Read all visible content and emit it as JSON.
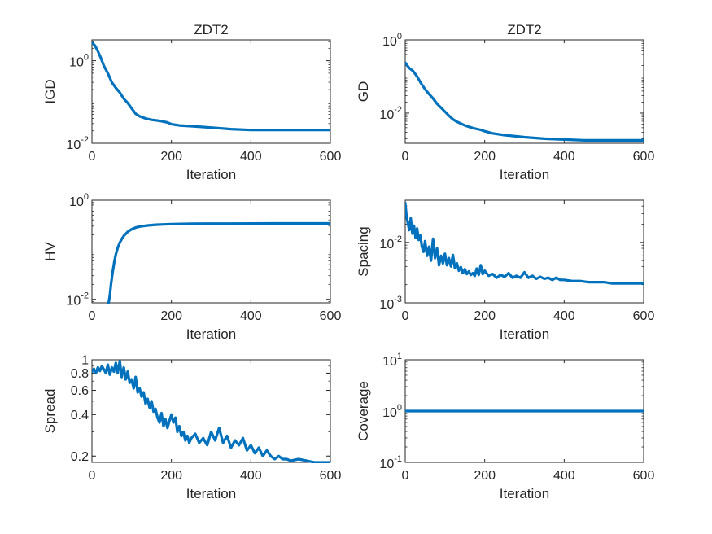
{
  "figure": {
    "background": "#ffffff",
    "line_color": "#0072bd",
    "axis_color": "#262626"
  },
  "chart_data": [
    {
      "type": "line",
      "id": "p1",
      "title": "ZDT2",
      "xlabel": "Iteration",
      "ylabel": "IGD",
      "yscale": "log",
      "xlim": [
        0,
        600
      ],
      "ylim": [
        0.01,
        3.2
      ],
      "x_ticks": [
        {
          "value": 0,
          "label": "0"
        },
        {
          "value": 200,
          "label": "200"
        },
        {
          "value": 400,
          "label": "400"
        },
        {
          "value": 600,
          "label": "600"
        }
      ],
      "y_ticks": [
        {
          "value": 0.01,
          "base": "10",
          "exp": "-2"
        },
        {
          "value": 1,
          "base": "10",
          "exp": "0"
        }
      ],
      "series": [
        {
          "x": [
            0,
            8,
            15,
            22,
            30,
            40,
            50,
            60,
            70,
            80,
            90,
            100,
            110,
            120,
            135,
            150,
            170,
            190,
            200,
            220,
            250,
            300,
            350,
            400,
            450,
            500,
            550,
            600
          ],
          "y": [
            2.8,
            2.3,
            1.7,
            1.2,
            0.75,
            0.5,
            0.3,
            0.22,
            0.17,
            0.12,
            0.095,
            0.07,
            0.052,
            0.045,
            0.04,
            0.037,
            0.035,
            0.032,
            0.029,
            0.027,
            0.026,
            0.024,
            0.022,
            0.021,
            0.021,
            0.021,
            0.021,
            0.021
          ]
        }
      ]
    },
    {
      "type": "line",
      "id": "p2",
      "title": "ZDT2",
      "xlabel": "Iteration",
      "ylabel": "GD",
      "yscale": "log",
      "xlim": [
        0,
        600
      ],
      "ylim": [
        0.0015,
        1
      ],
      "x_ticks": [
        {
          "value": 0,
          "label": "0"
        },
        {
          "value": 200,
          "label": "200"
        },
        {
          "value": 400,
          "label": "400"
        },
        {
          "value": 600,
          "label": "600"
        }
      ],
      "y_ticks": [
        {
          "value": 0.01,
          "base": "10",
          "exp": "-2"
        },
        {
          "value": 1,
          "base": "10",
          "exp": "0"
        }
      ],
      "series": [
        {
          "x": [
            0,
            5,
            10,
            20,
            30,
            40,
            50,
            60,
            70,
            80,
            90,
            100,
            110,
            120,
            130,
            150,
            170,
            190,
            200,
            220,
            250,
            300,
            350,
            400,
            450,
            500,
            550,
            600
          ],
          "y": [
            0.24,
            0.2,
            0.17,
            0.14,
            0.1,
            0.065,
            0.045,
            0.033,
            0.025,
            0.018,
            0.014,
            0.011,
            0.0085,
            0.0068,
            0.0058,
            0.0046,
            0.0039,
            0.0035,
            0.0032,
            0.0028,
            0.0025,
            0.0022,
            0.002,
            0.0019,
            0.0018,
            0.0018,
            0.0018,
            0.0018
          ]
        }
      ]
    },
    {
      "type": "line",
      "id": "p3",
      "title": "",
      "xlabel": "Iteration",
      "ylabel": "HV",
      "yscale": "log",
      "xlim": [
        0,
        600
      ],
      "ylim": [
        0.0085,
        1
      ],
      "x_ticks": [
        {
          "value": 0,
          "label": "0"
        },
        {
          "value": 200,
          "label": "200"
        },
        {
          "value": 400,
          "label": "400"
        },
        {
          "value": 600,
          "label": "600"
        }
      ],
      "y_ticks": [
        {
          "value": 0.01,
          "base": "10",
          "exp": "-2"
        },
        {
          "value": 1,
          "base": "10",
          "exp": "0"
        }
      ],
      "series": [
        {
          "x": [
            42,
            45,
            48,
            52,
            56,
            60,
            65,
            70,
            75,
            80,
            90,
            100,
            110,
            120,
            140,
            160,
            180,
            200,
            250,
            300,
            350,
            400,
            450,
            500,
            550,
            600
          ],
          "y": [
            0.0085,
            0.012,
            0.02,
            0.035,
            0.055,
            0.08,
            0.11,
            0.14,
            0.165,
            0.19,
            0.23,
            0.26,
            0.28,
            0.295,
            0.31,
            0.32,
            0.325,
            0.33,
            0.335,
            0.337,
            0.338,
            0.339,
            0.34,
            0.34,
            0.34,
            0.34
          ]
        }
      ]
    },
    {
      "type": "line",
      "id": "p4",
      "title": "",
      "xlabel": "Iteration",
      "ylabel": "Spacing",
      "yscale": "log",
      "xlim": [
        0,
        600
      ],
      "ylim": [
        0.001,
        0.05
      ],
      "x_ticks": [
        {
          "value": 0,
          "label": "0"
        },
        {
          "value": 200,
          "label": "200"
        },
        {
          "value": 400,
          "label": "400"
        },
        {
          "value": 600,
          "label": "600"
        }
      ],
      "y_ticks": [
        {
          "value": 0.001,
          "base": "10",
          "exp": "-3"
        },
        {
          "value": 0.01,
          "base": "10",
          "exp": "-2"
        }
      ],
      "series": [
        {
          "x": [
            0,
            3,
            6,
            10,
            14,
            18,
            22,
            26,
            30,
            34,
            38,
            42,
            46,
            50,
            55,
            60,
            65,
            70,
            75,
            80,
            85,
            90,
            95,
            100,
            105,
            110,
            115,
            120,
            125,
            130,
            135,
            140,
            145,
            150,
            155,
            160,
            165,
            170,
            175,
            180,
            185,
            190,
            195,
            200,
            210,
            220,
            230,
            240,
            250,
            260,
            270,
            280,
            290,
            300,
            310,
            320,
            330,
            340,
            350,
            360,
            370,
            380,
            390,
            400,
            420,
            440,
            460,
            480,
            500,
            520,
            540,
            560,
            580,
            600
          ],
          "y": [
            0.045,
            0.028,
            0.022,
            0.016,
            0.025,
            0.014,
            0.019,
            0.012,
            0.017,
            0.011,
            0.013,
            0.0085,
            0.007,
            0.0105,
            0.006,
            0.0085,
            0.005,
            0.0115,
            0.0055,
            0.008,
            0.0042,
            0.006,
            0.0045,
            0.0065,
            0.0042,
            0.0055,
            0.004,
            0.0062,
            0.0038,
            0.0045,
            0.0034,
            0.0039,
            0.0031,
            0.0036,
            0.003,
            0.0033,
            0.0029,
            0.0031,
            0.0028,
            0.0037,
            0.0029,
            0.0042,
            0.003,
            0.0034,
            0.0028,
            0.003,
            0.0026,
            0.0029,
            0.0027,
            0.0031,
            0.0026,
            0.0028,
            0.0026,
            0.0032,
            0.0026,
            0.0028,
            0.0025,
            0.0027,
            0.0025,
            0.0026,
            0.0024,
            0.0026,
            0.0024,
            0.0024,
            0.0023,
            0.0023,
            0.0022,
            0.0022,
            0.0022,
            0.0021,
            0.0021,
            0.0021,
            0.0021,
            0.0021
          ]
        }
      ]
    },
    {
      "type": "line",
      "id": "p5",
      "title": "",
      "xlabel": "Iteration",
      "ylabel": "Spread",
      "yscale": "log",
      "xlim": [
        0,
        600
      ],
      "ylim": [
        0.18,
        1
      ],
      "x_ticks": [
        {
          "value": 0,
          "label": "0"
        },
        {
          "value": 200,
          "label": "200"
        },
        {
          "value": 400,
          "label": "400"
        },
        {
          "value": 600,
          "label": "600"
        }
      ],
      "y_ticks": [
        {
          "value": 0.2,
          "label": "0.2"
        },
        {
          "value": 0.4,
          "label": "0.4"
        },
        {
          "value": 0.6,
          "label": "0.6"
        },
        {
          "value": 0.8,
          "label": "0.8"
        },
        {
          "value": 1,
          "label": "1"
        }
      ],
      "series": [
        {
          "x": [
            0,
            5,
            10,
            15,
            20,
            25,
            30,
            35,
            40,
            45,
            50,
            55,
            60,
            65,
            70,
            75,
            80,
            85,
            90,
            95,
            100,
            105,
            110,
            115,
            120,
            125,
            130,
            135,
            140,
            145,
            150,
            155,
            160,
            165,
            170,
            175,
            180,
            185,
            190,
            195,
            200,
            205,
            210,
            215,
            220,
            225,
            230,
            235,
            240,
            245,
            250,
            260,
            270,
            280,
            290,
            300,
            310,
            320,
            330,
            340,
            350,
            360,
            370,
            380,
            390,
            400,
            410,
            420,
            430,
            440,
            450,
            460,
            470,
            480,
            490,
            500,
            520,
            540,
            560,
            580,
            600
          ],
          "y": [
            0.82,
            0.86,
            0.8,
            0.88,
            0.83,
            0.9,
            0.85,
            0.8,
            0.92,
            0.78,
            0.88,
            0.82,
            0.95,
            0.8,
            0.98,
            0.75,
            0.88,
            0.72,
            0.82,
            0.68,
            0.72,
            0.62,
            0.75,
            0.58,
            0.62,
            0.54,
            0.58,
            0.48,
            0.52,
            0.45,
            0.5,
            0.42,
            0.44,
            0.38,
            0.35,
            0.41,
            0.33,
            0.37,
            0.32,
            0.36,
            0.4,
            0.35,
            0.38,
            0.3,
            0.33,
            0.28,
            0.3,
            0.26,
            0.28,
            0.25,
            0.27,
            0.29,
            0.25,
            0.27,
            0.24,
            0.3,
            0.26,
            0.32,
            0.25,
            0.28,
            0.23,
            0.26,
            0.24,
            0.27,
            0.22,
            0.24,
            0.21,
            0.23,
            0.2,
            0.22,
            0.2,
            0.19,
            0.2,
            0.19,
            0.19,
            0.185,
            0.19,
            0.185,
            0.18,
            0.18,
            0.18
          ]
        }
      ]
    },
    {
      "type": "line",
      "id": "p6",
      "title": "",
      "xlabel": "Iteration",
      "ylabel": "Coverage",
      "yscale": "log",
      "xlim": [
        0,
        600
      ],
      "ylim": [
        0.1,
        10
      ],
      "x_ticks": [
        {
          "value": 0,
          "label": "0"
        },
        {
          "value": 200,
          "label": "200"
        },
        {
          "value": 400,
          "label": "400"
        },
        {
          "value": 600,
          "label": "600"
        }
      ],
      "y_ticks": [
        {
          "value": 0.1,
          "base": "10",
          "exp": "-1"
        },
        {
          "value": 1,
          "base": "10",
          "exp": "0"
        },
        {
          "value": 10,
          "base": "10",
          "exp": "1"
        }
      ],
      "series": [
        {
          "x": [
            0,
            600
          ],
          "y": [
            1,
            1
          ]
        }
      ]
    }
  ]
}
